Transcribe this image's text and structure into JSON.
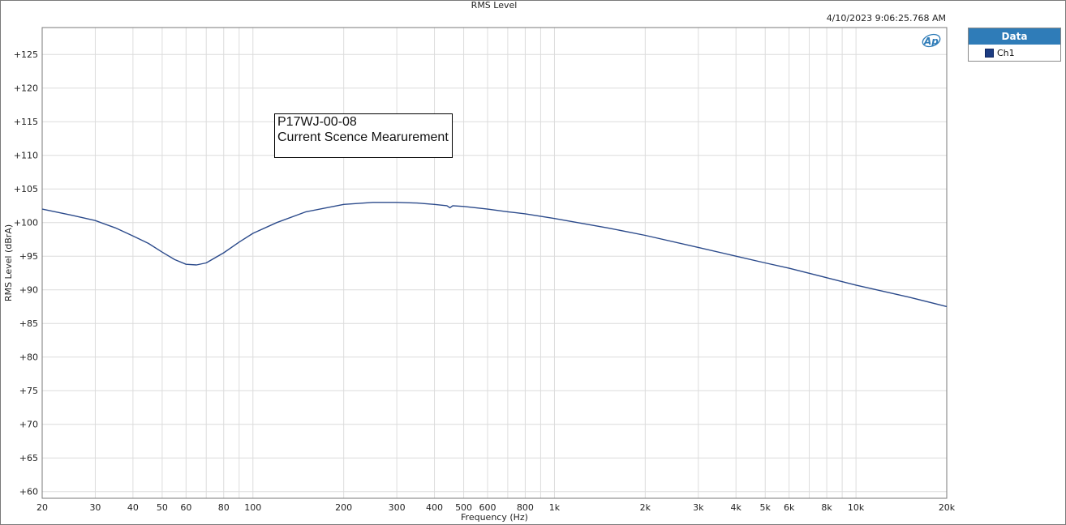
{
  "chart_data": {
    "type": "line",
    "title": "RMS Level",
    "timestamp": "4/10/2023 9:06:25.768 AM",
    "xlabel": "Frequency (Hz)",
    "ylabel": "RMS Level (dBrA)",
    "x_scale": "log",
    "xlim": [
      20,
      20000
    ],
    "ylim": [
      59,
      129
    ],
    "grid": true,
    "x_ticks": [
      {
        "v": 20,
        "label": "20"
      },
      {
        "v": 30,
        "label": "30"
      },
      {
        "v": 40,
        "label": "40"
      },
      {
        "v": 50,
        "label": "50"
      },
      {
        "v": 60,
        "label": "60"
      },
      {
        "v": 80,
        "label": "80"
      },
      {
        "v": 100,
        "label": "100"
      },
      {
        "v": 200,
        "label": "200"
      },
      {
        "v": 300,
        "label": "300"
      },
      {
        "v": 400,
        "label": "400"
      },
      {
        "v": 500,
        "label": "500"
      },
      {
        "v": 600,
        "label": "600"
      },
      {
        "v": 800,
        "label": "800"
      },
      {
        "v": 1000,
        "label": "1k"
      },
      {
        "v": 2000,
        "label": "2k"
      },
      {
        "v": 3000,
        "label": "3k"
      },
      {
        "v": 4000,
        "label": "4k"
      },
      {
        "v": 5000,
        "label": "5k"
      },
      {
        "v": 6000,
        "label": "6k"
      },
      {
        "v": 8000,
        "label": "8k"
      },
      {
        "v": 10000,
        "label": "10k"
      },
      {
        "v": 20000,
        "label": "20k"
      }
    ],
    "y_ticks": [
      {
        "v": 60,
        "label": "+60"
      },
      {
        "v": 65,
        "label": "+65"
      },
      {
        "v": 70,
        "label": "+70"
      },
      {
        "v": 75,
        "label": "+75"
      },
      {
        "v": 80,
        "label": "+80"
      },
      {
        "v": 85,
        "label": "+85"
      },
      {
        "v": 90,
        "label": "+90"
      },
      {
        "v": 95,
        "label": "+95"
      },
      {
        "v": 100,
        "label": "+100"
      },
      {
        "v": 105,
        "label": "+105"
      },
      {
        "v": 110,
        "label": "+110"
      },
      {
        "v": 115,
        "label": "+115"
      },
      {
        "v": 120,
        "label": "+120"
      },
      {
        "v": 125,
        "label": "+125"
      }
    ],
    "series": [
      {
        "name": "Ch1",
        "color": "#2b4a8b",
        "x": [
          20,
          25,
          30,
          35,
          40,
          45,
          50,
          55,
          60,
          65,
          70,
          80,
          90,
          100,
          120,
          150,
          200,
          250,
          300,
          350,
          400,
          440,
          450,
          460,
          500,
          600,
          700,
          800,
          1000,
          1500,
          2000,
          3000,
          4000,
          5000,
          6000,
          8000,
          10000,
          15000,
          20000
        ],
        "y": [
          102.0,
          101.1,
          100.3,
          99.2,
          98.0,
          96.9,
          95.6,
          94.5,
          93.8,
          93.7,
          94.0,
          95.5,
          97.1,
          98.4,
          100.0,
          101.6,
          102.7,
          103.0,
          103.0,
          102.9,
          102.7,
          102.5,
          102.2,
          102.5,
          102.4,
          102.0,
          101.6,
          101.3,
          100.6,
          99.2,
          98.1,
          96.3,
          95.0,
          94.0,
          93.2,
          91.8,
          90.7,
          88.9,
          87.5
        ]
      }
    ],
    "legend": {
      "title": "Data",
      "position": "right-top"
    },
    "annotation": {
      "line1": "P17WJ-00-08",
      "line2": "Current Scence Mearurement"
    }
  }
}
